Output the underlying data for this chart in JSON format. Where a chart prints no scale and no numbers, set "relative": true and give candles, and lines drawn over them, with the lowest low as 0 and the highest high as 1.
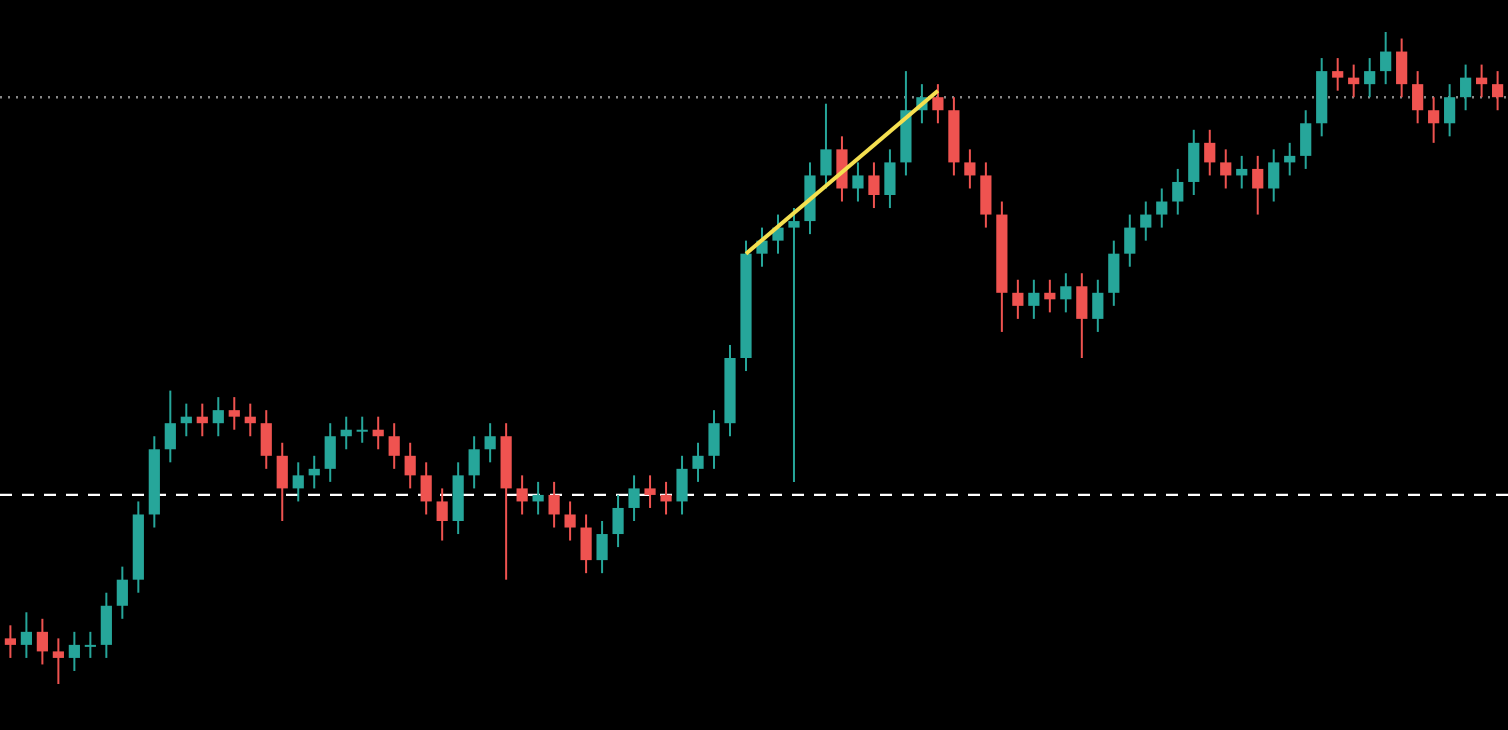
{
  "chart_data": {
    "type": "candlestick",
    "relative": true,
    "categories": [
      null,
      null,
      null,
      null,
      null,
      null,
      null,
      null,
      null,
      null,
      null,
      null,
      null,
      null,
      null,
      null,
      null,
      null,
      null,
      null,
      null,
      null,
      null,
      null,
      null,
      null,
      null,
      null,
      null,
      null,
      null,
      null,
      null,
      null,
      null,
      null,
      null,
      null,
      null,
      null,
      null,
      null,
      null,
      null,
      null,
      null,
      null,
      null,
      null,
      null,
      null,
      null,
      null,
      null,
      null,
      null,
      null,
      null,
      null,
      null,
      null,
      null,
      null,
      null,
      null,
      null,
      null,
      null,
      null,
      null,
      null,
      null,
      null,
      null,
      null,
      null,
      null,
      null,
      null,
      null,
      null,
      null,
      null,
      null,
      null,
      null,
      null,
      null,
      null,
      null,
      null,
      null,
      null,
      null
    ],
    "ohlc": [
      [
        0.07,
        0.09,
        0.04,
        0.06
      ],
      [
        0.06,
        0.11,
        0.04,
        0.08
      ],
      [
        0.08,
        0.1,
        0.03,
        0.05
      ],
      [
        0.05,
        0.07,
        0.0,
        0.04
      ],
      [
        0.04,
        0.08,
        0.02,
        0.06
      ],
      [
        0.06,
        0.08,
        0.04,
        0.06
      ],
      [
        0.06,
        0.14,
        0.04,
        0.12
      ],
      [
        0.12,
        0.18,
        0.1,
        0.16
      ],
      [
        0.16,
        0.28,
        0.14,
        0.26
      ],
      [
        0.26,
        0.38,
        0.24,
        0.36
      ],
      [
        0.36,
        0.45,
        0.34,
        0.4
      ],
      [
        0.4,
        0.43,
        0.38,
        0.41
      ],
      [
        0.41,
        0.43,
        0.38,
        0.4
      ],
      [
        0.4,
        0.44,
        0.38,
        0.42
      ],
      [
        0.42,
        0.44,
        0.39,
        0.41
      ],
      [
        0.41,
        0.43,
        0.38,
        0.4
      ],
      [
        0.4,
        0.42,
        0.33,
        0.35
      ],
      [
        0.35,
        0.37,
        0.25,
        0.3
      ],
      [
        0.3,
        0.34,
        0.28,
        0.32
      ],
      [
        0.32,
        0.35,
        0.3,
        0.33
      ],
      [
        0.33,
        0.4,
        0.31,
        0.38
      ],
      [
        0.38,
        0.41,
        0.36,
        0.39
      ],
      [
        0.39,
        0.41,
        0.37,
        0.39
      ],
      [
        0.39,
        0.41,
        0.36,
        0.38
      ],
      [
        0.38,
        0.4,
        0.33,
        0.35
      ],
      [
        0.35,
        0.37,
        0.3,
        0.32
      ],
      [
        0.32,
        0.34,
        0.26,
        0.28
      ],
      [
        0.28,
        0.3,
        0.22,
        0.25
      ],
      [
        0.25,
        0.34,
        0.23,
        0.32
      ],
      [
        0.32,
        0.38,
        0.3,
        0.36
      ],
      [
        0.36,
        0.4,
        0.34,
        0.38
      ],
      [
        0.38,
        0.4,
        0.16,
        0.3
      ],
      [
        0.3,
        0.32,
        0.26,
        0.28
      ],
      [
        0.28,
        0.31,
        0.26,
        0.29
      ],
      [
        0.29,
        0.31,
        0.24,
        0.26
      ],
      [
        0.26,
        0.28,
        0.22,
        0.24
      ],
      [
        0.24,
        0.26,
        0.17,
        0.19
      ],
      [
        0.19,
        0.25,
        0.17,
        0.23
      ],
      [
        0.23,
        0.29,
        0.21,
        0.27
      ],
      [
        0.27,
        0.32,
        0.25,
        0.3
      ],
      [
        0.3,
        0.32,
        0.27,
        0.29
      ],
      [
        0.29,
        0.31,
        0.26,
        0.28
      ],
      [
        0.28,
        0.35,
        0.26,
        0.33
      ],
      [
        0.33,
        0.37,
        0.31,
        0.35
      ],
      [
        0.35,
        0.42,
        0.33,
        0.4
      ],
      [
        0.4,
        0.52,
        0.38,
        0.5
      ],
      [
        0.5,
        0.68,
        0.48,
        0.66
      ],
      [
        0.66,
        0.7,
        0.64,
        0.68
      ],
      [
        0.68,
        0.72,
        0.66,
        0.7
      ],
      [
        0.7,
        0.73,
        0.31,
        0.71
      ],
      [
        0.71,
        0.8,
        0.69,
        0.78
      ],
      [
        0.78,
        0.89,
        0.76,
        0.82
      ],
      [
        0.82,
        0.84,
        0.74,
        0.76
      ],
      [
        0.76,
        0.8,
        0.74,
        0.78
      ],
      [
        0.78,
        0.8,
        0.73,
        0.75
      ],
      [
        0.75,
        0.82,
        0.73,
        0.8
      ],
      [
        0.8,
        0.94,
        0.78,
        0.88
      ],
      [
        0.88,
        0.92,
        0.86,
        0.9
      ],
      [
        0.9,
        0.92,
        0.86,
        0.88
      ],
      [
        0.88,
        0.9,
        0.78,
        0.8
      ],
      [
        0.8,
        0.82,
        0.76,
        0.78
      ],
      [
        0.78,
        0.8,
        0.7,
        0.72
      ],
      [
        0.72,
        0.74,
        0.54,
        0.6
      ],
      [
        0.6,
        0.62,
        0.56,
        0.58
      ],
      [
        0.58,
        0.62,
        0.56,
        0.6
      ],
      [
        0.6,
        0.62,
        0.57,
        0.59
      ],
      [
        0.59,
        0.63,
        0.57,
        0.61
      ],
      [
        0.61,
        0.63,
        0.5,
        0.56
      ],
      [
        0.56,
        0.62,
        0.54,
        0.6
      ],
      [
        0.6,
        0.68,
        0.58,
        0.66
      ],
      [
        0.66,
        0.72,
        0.64,
        0.7
      ],
      [
        0.7,
        0.74,
        0.68,
        0.72
      ],
      [
        0.72,
        0.76,
        0.7,
        0.74
      ],
      [
        0.74,
        0.79,
        0.72,
        0.77
      ],
      [
        0.77,
        0.85,
        0.75,
        0.83
      ],
      [
        0.83,
        0.85,
        0.78,
        0.8
      ],
      [
        0.8,
        0.82,
        0.76,
        0.78
      ],
      [
        0.78,
        0.81,
        0.76,
        0.79
      ],
      [
        0.79,
        0.81,
        0.72,
        0.76
      ],
      [
        0.76,
        0.82,
        0.74,
        0.8
      ],
      [
        0.8,
        0.83,
        0.78,
        0.81
      ],
      [
        0.81,
        0.88,
        0.79,
        0.86
      ],
      [
        0.86,
        0.96,
        0.84,
        0.94
      ],
      [
        0.94,
        0.96,
        0.91,
        0.93
      ],
      [
        0.93,
        0.95,
        0.9,
        0.92
      ],
      [
        0.92,
        0.96,
        0.9,
        0.94
      ],
      [
        0.94,
        1.0,
        0.92,
        0.97
      ],
      [
        0.97,
        0.99,
        0.9,
        0.92
      ],
      [
        0.92,
        0.94,
        0.86,
        0.88
      ],
      [
        0.88,
        0.9,
        0.83,
        0.86
      ],
      [
        0.86,
        0.92,
        0.84,
        0.9
      ],
      [
        0.9,
        0.95,
        0.88,
        0.93
      ],
      [
        0.93,
        0.95,
        0.9,
        0.92
      ],
      [
        0.92,
        0.94,
        0.88,
        0.9
      ]
    ],
    "series": [
      {
        "type": "line",
        "color": "#f5e050",
        "values": [
          null,
          null,
          null,
          null,
          null,
          null,
          null,
          null,
          null,
          null,
          null,
          null,
          null,
          null,
          null,
          null,
          null,
          null,
          null,
          null,
          null,
          null,
          null,
          null,
          null,
          null,
          null,
          null,
          null,
          null,
          null,
          null,
          null,
          null,
          null,
          null,
          null,
          null,
          null,
          null,
          null,
          null,
          null,
          null,
          null,
          null,
          0.66,
          null,
          null,
          null,
          null,
          null,
          null,
          null,
          null,
          null,
          null,
          null,
          0.91,
          null,
          null,
          null,
          null,
          null,
          null,
          null,
          null,
          null,
          null,
          null,
          null,
          null,
          null,
          null,
          null,
          null,
          null,
          null,
          null,
          null,
          null,
          null,
          null,
          null,
          null,
          null,
          null,
          null,
          null,
          null,
          null,
          null,
          null,
          null
        ]
      }
    ],
    "ref_lines": [
      {
        "axis": "y",
        "value": 0.29,
        "color": "#ffffff",
        "line_style": "dashed"
      },
      {
        "axis": "y",
        "value": 0.9,
        "color": "#888888",
        "line_style": "dotted"
      }
    ]
  }
}
